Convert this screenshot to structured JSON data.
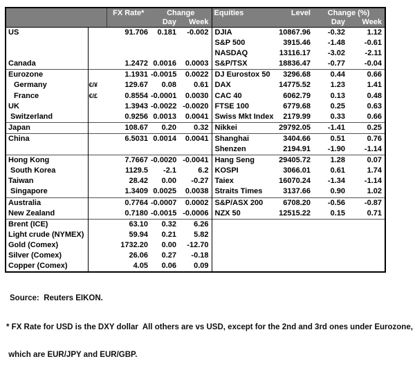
{
  "table": {
    "columns": {
      "fx_rate": "FX Rate*",
      "change": "Change",
      "day": "Day",
      "week": "Week",
      "equities": "Equities",
      "level": "Level",
      "change_pct": "Change (%)",
      "day2": "Day",
      "week2": "Week"
    },
    "colors": {
      "header_bg": "#7f7f7f",
      "header_text": "#ffffff",
      "border": "#000000"
    }
  },
  "sections": [
    {
      "rows": [
        {
          "name": "US",
          "sym": "",
          "indent": 0,
          "fx": "91.706",
          "fx_day": "0.181",
          "fx_week": "-0.002",
          "eq": "DJIA",
          "level": "10867.96",
          "eq_day": "-0.32",
          "eq_week": "1.12"
        },
        {
          "name": "",
          "sym": "",
          "indent": 0,
          "fx": "",
          "fx_day": "",
          "fx_week": "",
          "eq": "S&P 500",
          "level": "3915.46",
          "eq_day": "-1.48",
          "eq_week": "-0.61"
        },
        {
          "name": "",
          "sym": "",
          "indent": 0,
          "fx": "",
          "fx_day": "",
          "fx_week": "",
          "eq": "NASDAQ",
          "level": "13116.17",
          "eq_day": "-3.02",
          "eq_week": "-2.11"
        },
        {
          "name": "Canada",
          "sym": "",
          "indent": 0,
          "fx": "1.2472",
          "fx_day": "0.0016",
          "fx_week": "0.0003",
          "eq": "S&P/TSX",
          "level": "18836.47",
          "eq_day": "-0.77",
          "eq_week": "-0.04"
        }
      ]
    },
    {
      "rows": [
        {
          "name": "Eurozone",
          "sym": "",
          "indent": 0,
          "fx": "1.1931",
          "fx_day": "-0.0015",
          "fx_week": "0.0022",
          "eq": "DJ Eurostox 50",
          "level": "3296.68",
          "eq_day": "0.44",
          "eq_week": "0.66"
        },
        {
          "name": "Germany",
          "sym": "€/¥",
          "indent": 2,
          "fx": "129.67",
          "fx_day": "0.08",
          "fx_week": "0.61",
          "eq": "DAX",
          "level": "14775.52",
          "eq_day": "1.23",
          "eq_week": "1.41"
        },
        {
          "name": "France",
          "sym": "€/£",
          "indent": 2,
          "fx": "0.8554",
          "fx_day": "-0.0001",
          "fx_week": "0.0030",
          "eq": "CAC 40",
          "level": "6062.79",
          "eq_day": "0.13",
          "eq_week": "0.48"
        },
        {
          "name": "UK",
          "sym": "",
          "indent": 0,
          "fx": "1.3943",
          "fx_day": "-0.0022",
          "fx_week": "-0.0020",
          "eq": "FTSE 100",
          "level": "6779.68",
          "eq_day": "0.25",
          "eq_week": "0.63"
        },
        {
          "name": "Switzerland",
          "sym": "",
          "indent": 1,
          "fx": "0.9256",
          "fx_day": "0.0013",
          "fx_week": "0.0041",
          "eq": "Swiss Mkt Index",
          "level": "2179.99",
          "eq_day": "0.33",
          "eq_week": "0.66"
        }
      ]
    },
    {
      "rows": [
        {
          "name": "Japan",
          "sym": "",
          "indent": 0,
          "fx": "108.67",
          "fx_day": "0.20",
          "fx_week": "0.32",
          "eq": "Nikkei",
          "level": "29792.05",
          "eq_day": "-1.41",
          "eq_week": "0.25"
        }
      ]
    },
    {
      "rows": [
        {
          "name": "China",
          "sym": "",
          "indent": 0,
          "fx": "6.5031",
          "fx_day": "0.0014",
          "fx_week": "0.0041",
          "eq": "Shanghai",
          "level": "3404.66",
          "eq_day": "0.51",
          "eq_week": "0.76"
        },
        {
          "name": "",
          "sym": "",
          "indent": 0,
          "fx": "",
          "fx_day": "",
          "fx_week": "",
          "eq": "Shenzen",
          "level": "2194.91",
          "eq_day": "-1.90",
          "eq_week": "-1.14"
        }
      ]
    },
    {
      "rows": [
        {
          "name": "Hong Kong",
          "sym": "",
          "indent": 0,
          "fx": "7.7667",
          "fx_day": "-0.0020",
          "fx_week": "-0.0041",
          "eq": "Hang Seng",
          "level": "29405.72",
          "eq_day": "1.28",
          "eq_week": "0.07"
        },
        {
          "name": "South Korea",
          "sym": "",
          "indent": 1,
          "fx": "1129.5",
          "fx_day": "-2.1",
          "fx_week": "6.2",
          "eq": "KOSPI",
          "level": "3066.01",
          "eq_day": "0.61",
          "eq_week": "1.74"
        },
        {
          "name": "Taiwan",
          "sym": "",
          "indent": 0,
          "fx": "28.42",
          "fx_day": "0.00",
          "fx_week": "-0.27",
          "eq": "Taiex",
          "level": "16070.24",
          "eq_day": "-1.34",
          "eq_week": "-1.14"
        },
        {
          "name": "Singapore",
          "sym": "",
          "indent": 1,
          "fx": "1.3409",
          "fx_day": "0.0025",
          "fx_week": "0.0038",
          "eq": "Straits Times",
          "level": "3137.66",
          "eq_day": "0.90",
          "eq_week": "1.02"
        }
      ]
    },
    {
      "rows": [
        {
          "name": "Australia",
          "sym": "",
          "indent": 0,
          "fx": "0.7764",
          "fx_day": "-0.0007",
          "fx_week": "0.0002",
          "eq": "S&P/ASX 200",
          "level": "6708.20",
          "eq_day": "-0.56",
          "eq_week": "-0.87"
        },
        {
          "name": "New Zealand",
          "sym": "",
          "indent": 0,
          "fx": "0.7180",
          "fx_day": "-0.0015",
          "fx_week": "-0.0006",
          "eq": "NZX 50",
          "level": "12515.22",
          "eq_day": "0.15",
          "eq_week": "0.71"
        }
      ]
    },
    {
      "rows": [
        {
          "name": "Brent (ICE)",
          "sym": "",
          "indent": 0,
          "fx": "63.10",
          "fx_day": "0.32",
          "fx_week": "6.26",
          "eq": "",
          "level": "",
          "eq_day": "",
          "eq_week": ""
        },
        {
          "name": "Light crude (NYMEX)",
          "sym": "",
          "indent": 0,
          "fx": "59.94",
          "fx_day": "0.21",
          "fx_week": "5.82",
          "eq": "",
          "level": "",
          "eq_day": "",
          "eq_week": ""
        },
        {
          "name": "Gold (Comex)",
          "sym": "",
          "indent": 0,
          "fx": "1732.20",
          "fx_day": "0.00",
          "fx_week": "-12.70",
          "eq": "",
          "level": "",
          "eq_day": "",
          "eq_week": ""
        },
        {
          "name": "Silver (Comex)",
          "sym": "",
          "indent": 0,
          "fx": "26.06",
          "fx_day": "0.27",
          "fx_week": "-0.18",
          "eq": "",
          "level": "",
          "eq_day": "",
          "eq_week": ""
        },
        {
          "name": "Copper (Comex)",
          "sym": "",
          "indent": 0,
          "fx": "4.05",
          "fx_day": "0.06",
          "fx_week": "0.09",
          "eq": "",
          "level": "",
          "eq_day": "",
          "eq_week": ""
        }
      ]
    }
  ],
  "footer": {
    "source": "Source:  Reuters EIKON.",
    "footnote_line1": "* FX Rate for USD is the DXY dollar  All others are vs USD, except for the 2nd and 3rd ones under Eurozone,",
    "footnote_line2": " which are EUR/JPY and EUR/GBP."
  }
}
